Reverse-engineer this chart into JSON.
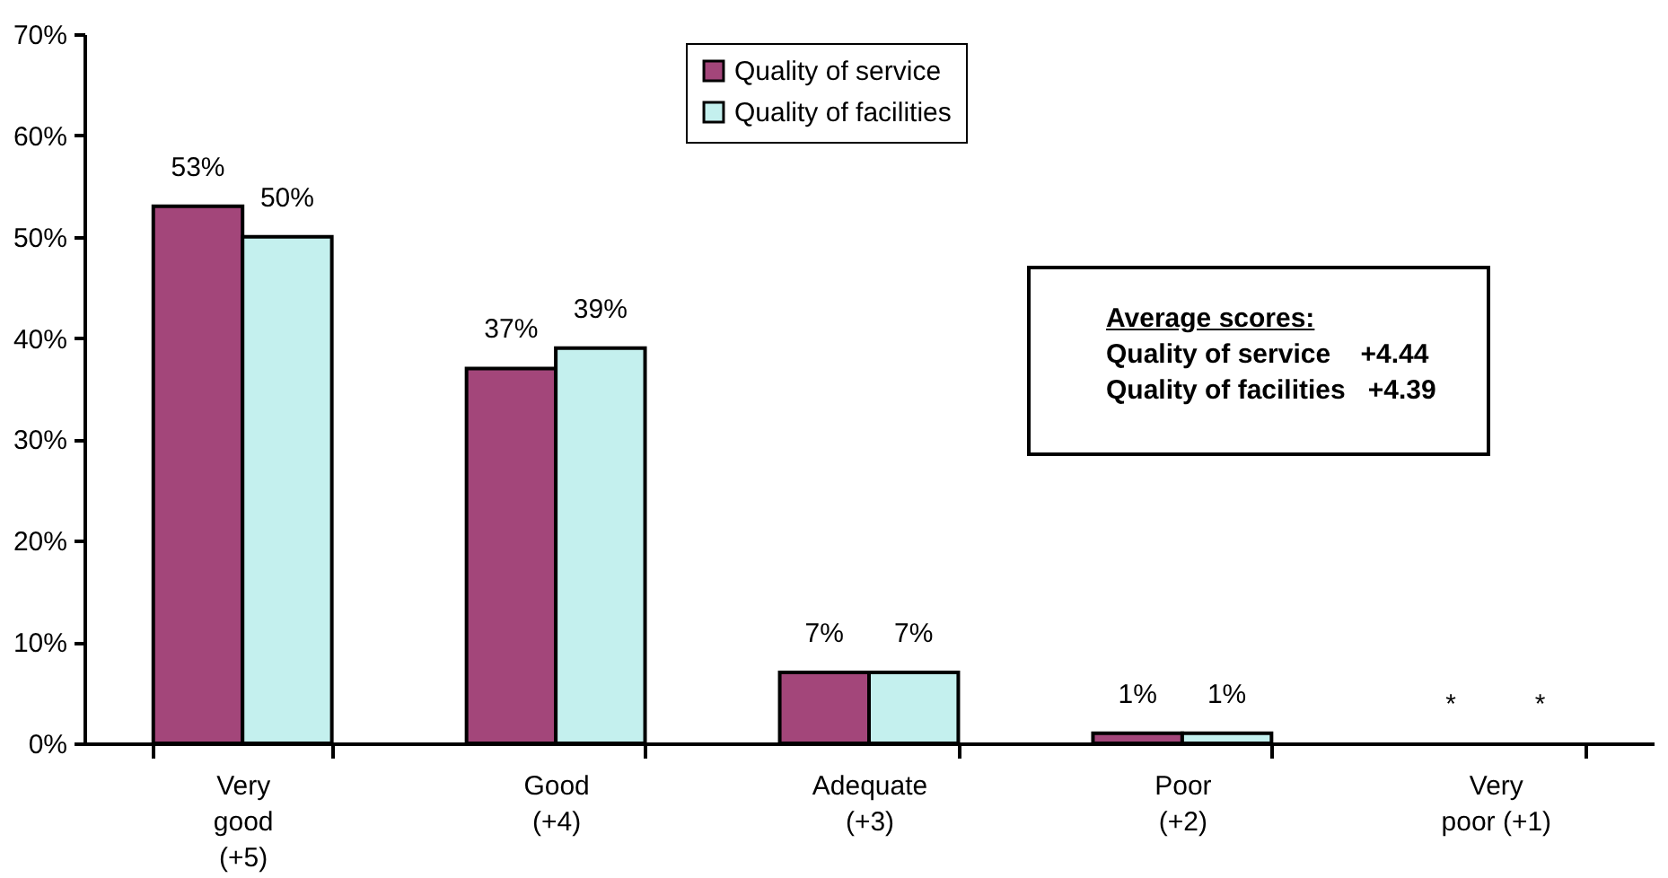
{
  "chart_data": {
    "type": "bar",
    "categories": [
      "Very\ngood\n(+5)",
      "Good\n(+4)",
      "Adequate\n(+3)",
      "Poor\n(+2)",
      "Very\npoor (+1)"
    ],
    "series": [
      {
        "name": "Quality of service",
        "color": "#a3467a",
        "values": [
          53,
          37,
          7,
          1,
          null
        ],
        "value_labels": [
          "53%",
          "37%",
          "7%",
          "1%",
          "*"
        ]
      },
      {
        "name": "Quality of facilities",
        "color": "#c4f0ee",
        "values": [
          50,
          39,
          7,
          1,
          null
        ],
        "value_labels": [
          "50%",
          "39%",
          "7%",
          "1%",
          "*"
        ]
      }
    ],
    "ylim": [
      0,
      70
    ],
    "yticks": [
      {
        "value": 0,
        "label": "0%"
      },
      {
        "value": 10,
        "label": "10%"
      },
      {
        "value": 20,
        "label": "20%"
      },
      {
        "value": 30,
        "label": "30%"
      },
      {
        "value": 40,
        "label": "40%"
      },
      {
        "value": 50,
        "label": "50%"
      },
      {
        "value": 60,
        "label": "60%"
      },
      {
        "value": 70,
        "label": "70%"
      }
    ],
    "legend": "top",
    "annotations": [
      "Average scores:",
      "Quality of service    +4.44",
      "Quality of facilities   +4.39"
    ]
  }
}
